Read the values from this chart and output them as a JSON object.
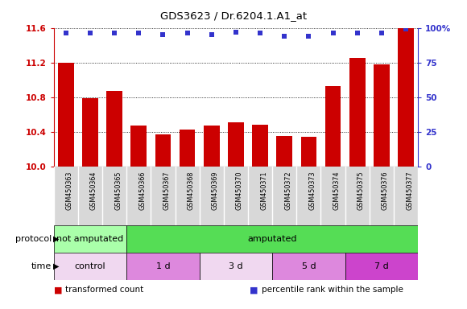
{
  "title": "GDS3623 / Dr.6204.1.A1_at",
  "samples": [
    "GSM450363",
    "GSM450364",
    "GSM450365",
    "GSM450366",
    "GSM450367",
    "GSM450368",
    "GSM450369",
    "GSM450370",
    "GSM450371",
    "GSM450372",
    "GSM450373",
    "GSM450374",
    "GSM450375",
    "GSM450376",
    "GSM450377"
  ],
  "bar_values": [
    11.2,
    10.79,
    10.87,
    10.47,
    10.37,
    10.43,
    10.47,
    10.51,
    10.48,
    10.35,
    10.34,
    10.93,
    11.25,
    11.18,
    11.6
  ],
  "percentile_values": [
    96,
    96,
    96,
    96,
    95,
    96,
    95,
    97,
    96,
    94,
    94,
    96,
    96,
    96,
    99
  ],
  "bar_color": "#cc0000",
  "percentile_color": "#3333cc",
  "ylim_left": [
    10.0,
    11.6
  ],
  "ylim_right": [
    0,
    100
  ],
  "yticks_left": [
    10.0,
    10.4,
    10.8,
    11.2,
    11.6
  ],
  "yticks_right": [
    0,
    25,
    50,
    75,
    100
  ],
  "protocol_groups": [
    {
      "label": "not amputated",
      "start": 0,
      "end": 3,
      "color": "#aaffaa"
    },
    {
      "label": "amputated",
      "start": 3,
      "end": 15,
      "color": "#55dd55"
    }
  ],
  "time_groups": [
    {
      "label": "control",
      "start": 0,
      "end": 3,
      "color": "#f0d8f0"
    },
    {
      "label": "1 d",
      "start": 3,
      "end": 6,
      "color": "#dd88dd"
    },
    {
      "label": "3 d",
      "start": 6,
      "end": 9,
      "color": "#f0d8f0"
    },
    {
      "label": "5 d",
      "start": 9,
      "end": 12,
      "color": "#dd88dd"
    },
    {
      "label": "7 d",
      "start": 12,
      "end": 15,
      "color": "#cc44cc"
    }
  ],
  "legend_items": [
    {
      "label": "transformed count",
      "color": "#cc0000"
    },
    {
      "label": "percentile rank within the sample",
      "color": "#3333cc"
    }
  ],
  "xlabel_bg": "#d8d8d8",
  "background_color": "#ffffff",
  "grid_color": "#000000",
  "tick_color_left": "#cc0000",
  "tick_color_right": "#3333cc"
}
